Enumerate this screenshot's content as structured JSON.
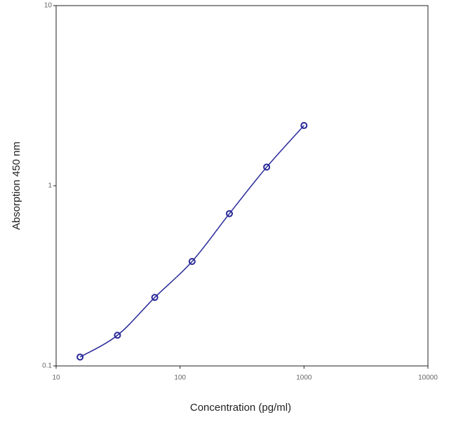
{
  "chart_data": {
    "type": "line",
    "x_label": "Concentration (pg/ml)",
    "y_label": "Absorption 450 nm",
    "x": [
      15.6,
      31.25,
      62.5,
      125,
      250,
      500,
      1000
    ],
    "values": [
      0.112,
      0.148,
      0.24,
      0.38,
      0.7,
      1.27,
      2.16
    ],
    "color": "#28289a",
    "markers": true,
    "xlog": true,
    "ylog": true,
    "xlim": [
      10,
      10000
    ],
    "ylim": [
      0.1,
      10
    ],
    "xticks": [
      10,
      100,
      1000,
      10000
    ],
    "yticks": [
      0.1,
      1,
      10
    ]
  }
}
